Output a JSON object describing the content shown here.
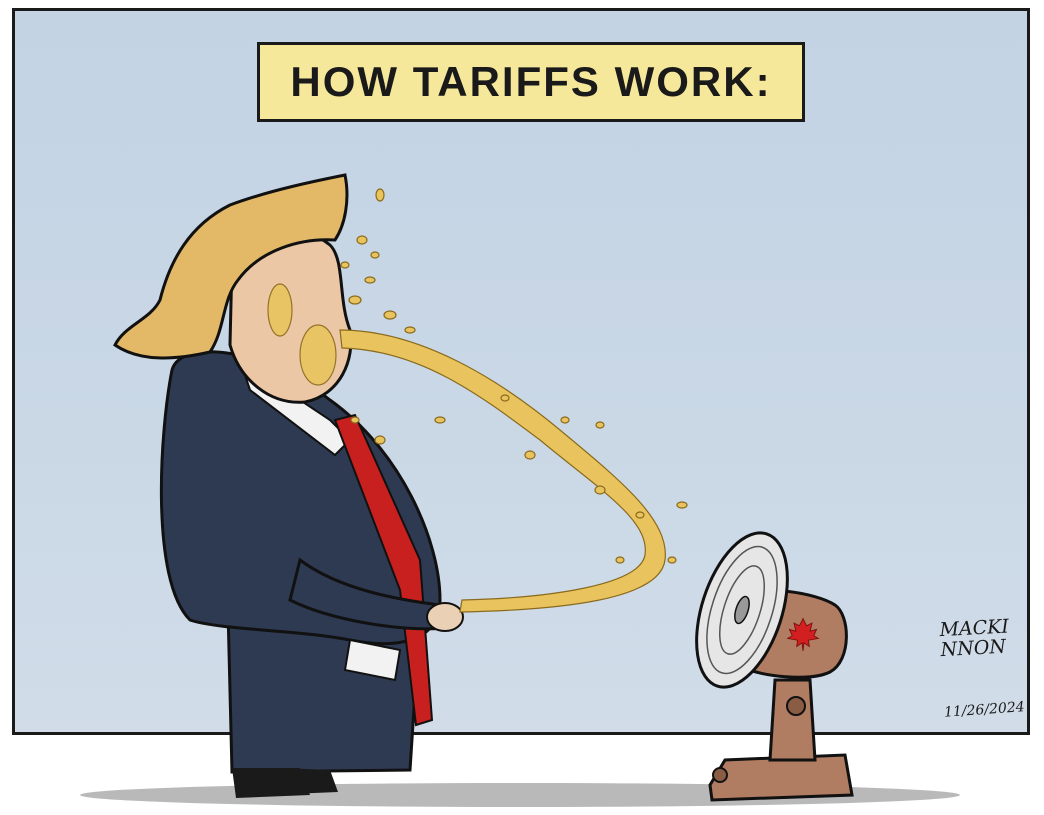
{
  "cartoon": {
    "title": "HOW TARIFFS WORK:",
    "signature": "MACKINNON",
    "date": "11/26/2024"
  },
  "icons": {
    "figure": "man-in-suit-icon",
    "fan": "desk-fan-icon",
    "emblem": "maple-leaf-icon"
  },
  "colors": {
    "sky": "#c3d3e4",
    "title_box": "#f6e89a",
    "suit": "#2e3a52",
    "tie": "#c8201f",
    "hair": "#e3b968",
    "spray": "#e9c45e",
    "fan_body": "#b07c62",
    "maple_leaf": "#d21f1f"
  }
}
